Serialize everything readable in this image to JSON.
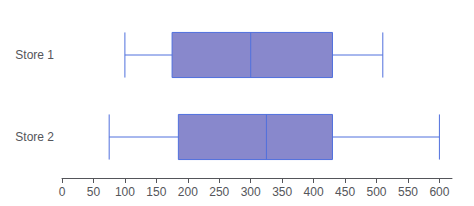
{
  "chart_data": {
    "type": "boxplot",
    "orientation": "horizontal",
    "categories": [
      "Store 1",
      "Store 2"
    ],
    "values": [
      [
        100,
        175,
        300,
        430,
        510
      ],
      [
        75,
        185,
        325,
        430,
        600
      ]
    ],
    "color": "#8888cc",
    "xlim": [
      0,
      620
    ],
    "xticks": [
      0,
      50,
      100,
      150,
      200,
      250,
      300,
      350,
      400,
      450,
      500,
      550,
      600
    ],
    "grid": false
  }
}
